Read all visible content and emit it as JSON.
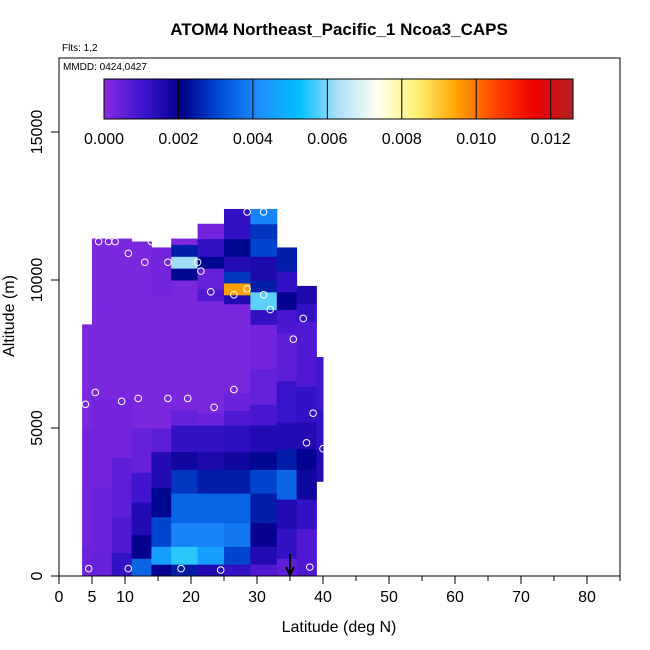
{
  "chart_data": {
    "type": "heatmap",
    "title": "ATOM4 Northeast_Pacific_1 Ncoa3_CAPS",
    "annotations": [
      "Flts: 1,2",
      "MMDD: 0424,0427"
    ],
    "xlabel": "Latitude (deg N)",
    "ylabel": "Altitude (m)",
    "xlim": [
      0,
      85
    ],
    "ylim": [
      0,
      17500
    ],
    "x_ticks_major": [
      0,
      10,
      20,
      30,
      40,
      50,
      60,
      70,
      80
    ],
    "x_ticks_extra": [
      5
    ],
    "x_ticks_minor": [
      15,
      25,
      35,
      45,
      55,
      65,
      75,
      85
    ],
    "y_ticks": [
      0,
      5000,
      10000,
      15000
    ],
    "colorbar": {
      "range": [
        0,
        0.0126
      ],
      "ticks": [
        "0.000",
        "0.002",
        "0.004",
        "0.006",
        "0.008",
        "0.010",
        "0.012"
      ],
      "tick_values": [
        0,
        0.002,
        0.004,
        0.006,
        0.008,
        0.01,
        0.012
      ],
      "colors": [
        "#8a2be2",
        "#3c14cf",
        "#00008b",
        "#0050d8",
        "#1e90ff",
        "#00bfff",
        "#b0e0f8",
        "#fffff0",
        "#fff176",
        "#ffa500",
        "#ff4500",
        "#ee0000",
        "#b22222"
      ]
    },
    "arrow_latitude": 35,
    "grid": false,
    "columns": [
      {
        "x0": 3.5,
        "x1": 5,
        "cells": [
          [
            0,
            1000,
            0.0004
          ],
          [
            1000,
            5000,
            0.0003
          ],
          [
            5000,
            8500,
            0.0002
          ]
        ]
      },
      {
        "x0": 5,
        "x1": 8,
        "cells": [
          [
            0,
            800,
            0.0005
          ],
          [
            800,
            3000,
            0.0004
          ],
          [
            3000,
            6000,
            0.0003
          ],
          [
            6000,
            9000,
            0.0002
          ],
          [
            9000,
            11400,
            0.0002
          ]
        ]
      },
      {
        "x0": 8,
        "x1": 11,
        "cells": [
          [
            0,
            800,
            0.0012
          ],
          [
            800,
            2000,
            0.0008
          ],
          [
            2000,
            4000,
            0.0006
          ],
          [
            4000,
            6000,
            0.0003
          ],
          [
            6000,
            11400,
            0.0002
          ]
        ]
      },
      {
        "x0": 11,
        "x1": 14,
        "cells": [
          [
            0,
            600,
            0.0035
          ],
          [
            600,
            1400,
            0.002
          ],
          [
            1400,
            2500,
            0.0015
          ],
          [
            2500,
            3500,
            0.001
          ],
          [
            3500,
            5000,
            0.0005
          ],
          [
            5000,
            11300,
            0.0002
          ]
        ]
      },
      {
        "x0": 14,
        "x1": 17,
        "cells": [
          [
            0,
            400,
            0.002
          ],
          [
            400,
            1000,
            0.0045
          ],
          [
            1000,
            2000,
            0.003
          ],
          [
            2000,
            3000,
            0.0022
          ],
          [
            3000,
            4200,
            0.0015
          ],
          [
            4200,
            5000,
            0.0006
          ],
          [
            5000,
            9500,
            0.0002
          ],
          [
            9500,
            11100,
            0.0003
          ]
        ]
      },
      {
        "x0": 17,
        "x1": 21,
        "cells": [
          [
            0,
            400,
            0.0025
          ],
          [
            400,
            1000,
            0.0055
          ],
          [
            1000,
            1800,
            0.004
          ],
          [
            1800,
            2800,
            0.0035
          ],
          [
            2800,
            3600,
            0.0028
          ],
          [
            3600,
            4200,
            0.0018
          ],
          [
            4200,
            5100,
            0.0012
          ],
          [
            5100,
            5600,
            0.0005
          ],
          [
            5600,
            10000,
            0.0002
          ],
          [
            10000,
            10400,
            0.0022
          ],
          [
            10400,
            10800,
            0.0062
          ],
          [
            10800,
            11200,
            0.0025
          ],
          [
            11200,
            11400,
            0.0002
          ]
        ]
      },
      {
        "x0": 21,
        "x1": 25,
        "cells": [
          [
            0,
            400,
            0.0015
          ],
          [
            400,
            1000,
            0.0045
          ],
          [
            1000,
            1800,
            0.004
          ],
          [
            1800,
            2800,
            0.0035
          ],
          [
            2800,
            3600,
            0.0025
          ],
          [
            3600,
            4200,
            0.0016
          ],
          [
            4200,
            5100,
            0.0012
          ],
          [
            5100,
            5500,
            0.0004
          ],
          [
            5500,
            9300,
            0.0002
          ],
          [
            9300,
            9700,
            0.0008
          ],
          [
            9700,
            10400,
            0.0005
          ],
          [
            10400,
            10800,
            0.0022
          ],
          [
            10800,
            11400,
            0.0012
          ],
          [
            11400,
            11900,
            0.0003
          ]
        ]
      },
      {
        "x0": 25,
        "x1": 29,
        "cells": [
          [
            0,
            400,
            0.0012
          ],
          [
            400,
            1000,
            0.003
          ],
          [
            1000,
            1800,
            0.0038
          ],
          [
            1800,
            2800,
            0.0035
          ],
          [
            2800,
            3600,
            0.0025
          ],
          [
            3600,
            4200,
            0.0018
          ],
          [
            4200,
            5100,
            0.0013
          ],
          [
            5100,
            5600,
            0.0008
          ],
          [
            5600,
            6200,
            0.0004
          ],
          [
            6200,
            9200,
            0.0002
          ],
          [
            9200,
            9500,
            0.0015
          ],
          [
            9500,
            9900,
            0.0095
          ],
          [
            9900,
            10300,
            0.0028
          ],
          [
            10300,
            10800,
            0.0015
          ],
          [
            10800,
            11400,
            0.0022
          ],
          [
            11400,
            11900,
            0.0012
          ],
          [
            11900,
            12400,
            0.0012
          ]
        ]
      },
      {
        "x0": 29,
        "x1": 33,
        "cells": [
          [
            0,
            400,
            0.0008
          ],
          [
            400,
            1000,
            0.0015
          ],
          [
            1000,
            1800,
            0.002
          ],
          [
            1800,
            2800,
            0.0025
          ],
          [
            2800,
            3600,
            0.003
          ],
          [
            3600,
            4200,
            0.0022
          ],
          [
            4200,
            5100,
            0.0015
          ],
          [
            5100,
            5800,
            0.0009
          ],
          [
            5800,
            7000,
            0.0005
          ],
          [
            7000,
            8500,
            0.0003
          ],
          [
            8500,
            9000,
            0.0012
          ],
          [
            9000,
            9600,
            0.0058
          ],
          [
            9600,
            10000,
            0.0025
          ],
          [
            10000,
            10800,
            0.0016
          ],
          [
            10800,
            11400,
            0.003
          ],
          [
            11400,
            11900,
            0.0028
          ],
          [
            11900,
            12400,
            0.004
          ]
        ]
      },
      {
        "x0": 33,
        "x1": 36,
        "cells": [
          [
            0,
            600,
            0.0006
          ],
          [
            600,
            1600,
            0.0012
          ],
          [
            1600,
            2600,
            0.0015
          ],
          [
            2600,
            3600,
            0.0035
          ],
          [
            3600,
            4300,
            0.0025
          ],
          [
            4300,
            5200,
            0.0015
          ],
          [
            5200,
            6600,
            0.0011
          ],
          [
            6600,
            8200,
            0.0006
          ],
          [
            8200,
            9000,
            0.0009
          ],
          [
            9000,
            9600,
            0.002
          ],
          [
            9600,
            10300,
            0.0012
          ],
          [
            10300,
            11100,
            0.0025
          ]
        ]
      },
      {
        "x0": 36,
        "x1": 39,
        "cells": [
          [
            0,
            1600,
            0.0008
          ],
          [
            1600,
            2600,
            0.0012
          ],
          [
            2600,
            3600,
            0.0018
          ],
          [
            3600,
            4300,
            0.002
          ],
          [
            4300,
            5200,
            0.0015
          ],
          [
            5200,
            6400,
            0.0012
          ],
          [
            6400,
            8600,
            0.0008
          ],
          [
            8600,
            9200,
            0.0012
          ],
          [
            9200,
            9800,
            0.0016
          ]
        ]
      },
      {
        "x0": 39,
        "x1": 40,
        "cells": [
          [
            3200,
            4300,
            0.0015
          ],
          [
            4300,
            5600,
            0.0012
          ],
          [
            5600,
            7400,
            0.001
          ]
        ]
      }
    ],
    "points": [
      [
        4.5,
        250
      ],
      [
        10.5,
        250
      ],
      [
        18.5,
        250
      ],
      [
        24.5,
        200
      ],
      [
        38,
        300
      ],
      [
        4,
        5800
      ],
      [
        5.5,
        6200
      ],
      [
        9.5,
        5900
      ],
      [
        12,
        6000
      ],
      [
        16.5,
        6000
      ],
      [
        19.5,
        6000
      ],
      [
        23.5,
        5700
      ],
      [
        26.5,
        6300
      ],
      [
        37.5,
        4500
      ],
      [
        38.5,
        5500
      ],
      [
        40,
        4300
      ],
      [
        6,
        11300
      ],
      [
        7.5,
        11300
      ],
      [
        8.5,
        11300
      ],
      [
        14,
        11300
      ],
      [
        10.5,
        10900
      ],
      [
        13,
        10600
      ],
      [
        16.5,
        10600
      ],
      [
        21,
        10600
      ],
      [
        21.5,
        10300
      ],
      [
        23,
        9600
      ],
      [
        26.5,
        9500
      ],
      [
        28.5,
        9700
      ],
      [
        31,
        9500
      ],
      [
        32,
        9000
      ],
      [
        37,
        8700
      ],
      [
        35.5,
        8000
      ],
      [
        28.5,
        12300
      ],
      [
        31,
        12300
      ]
    ]
  }
}
